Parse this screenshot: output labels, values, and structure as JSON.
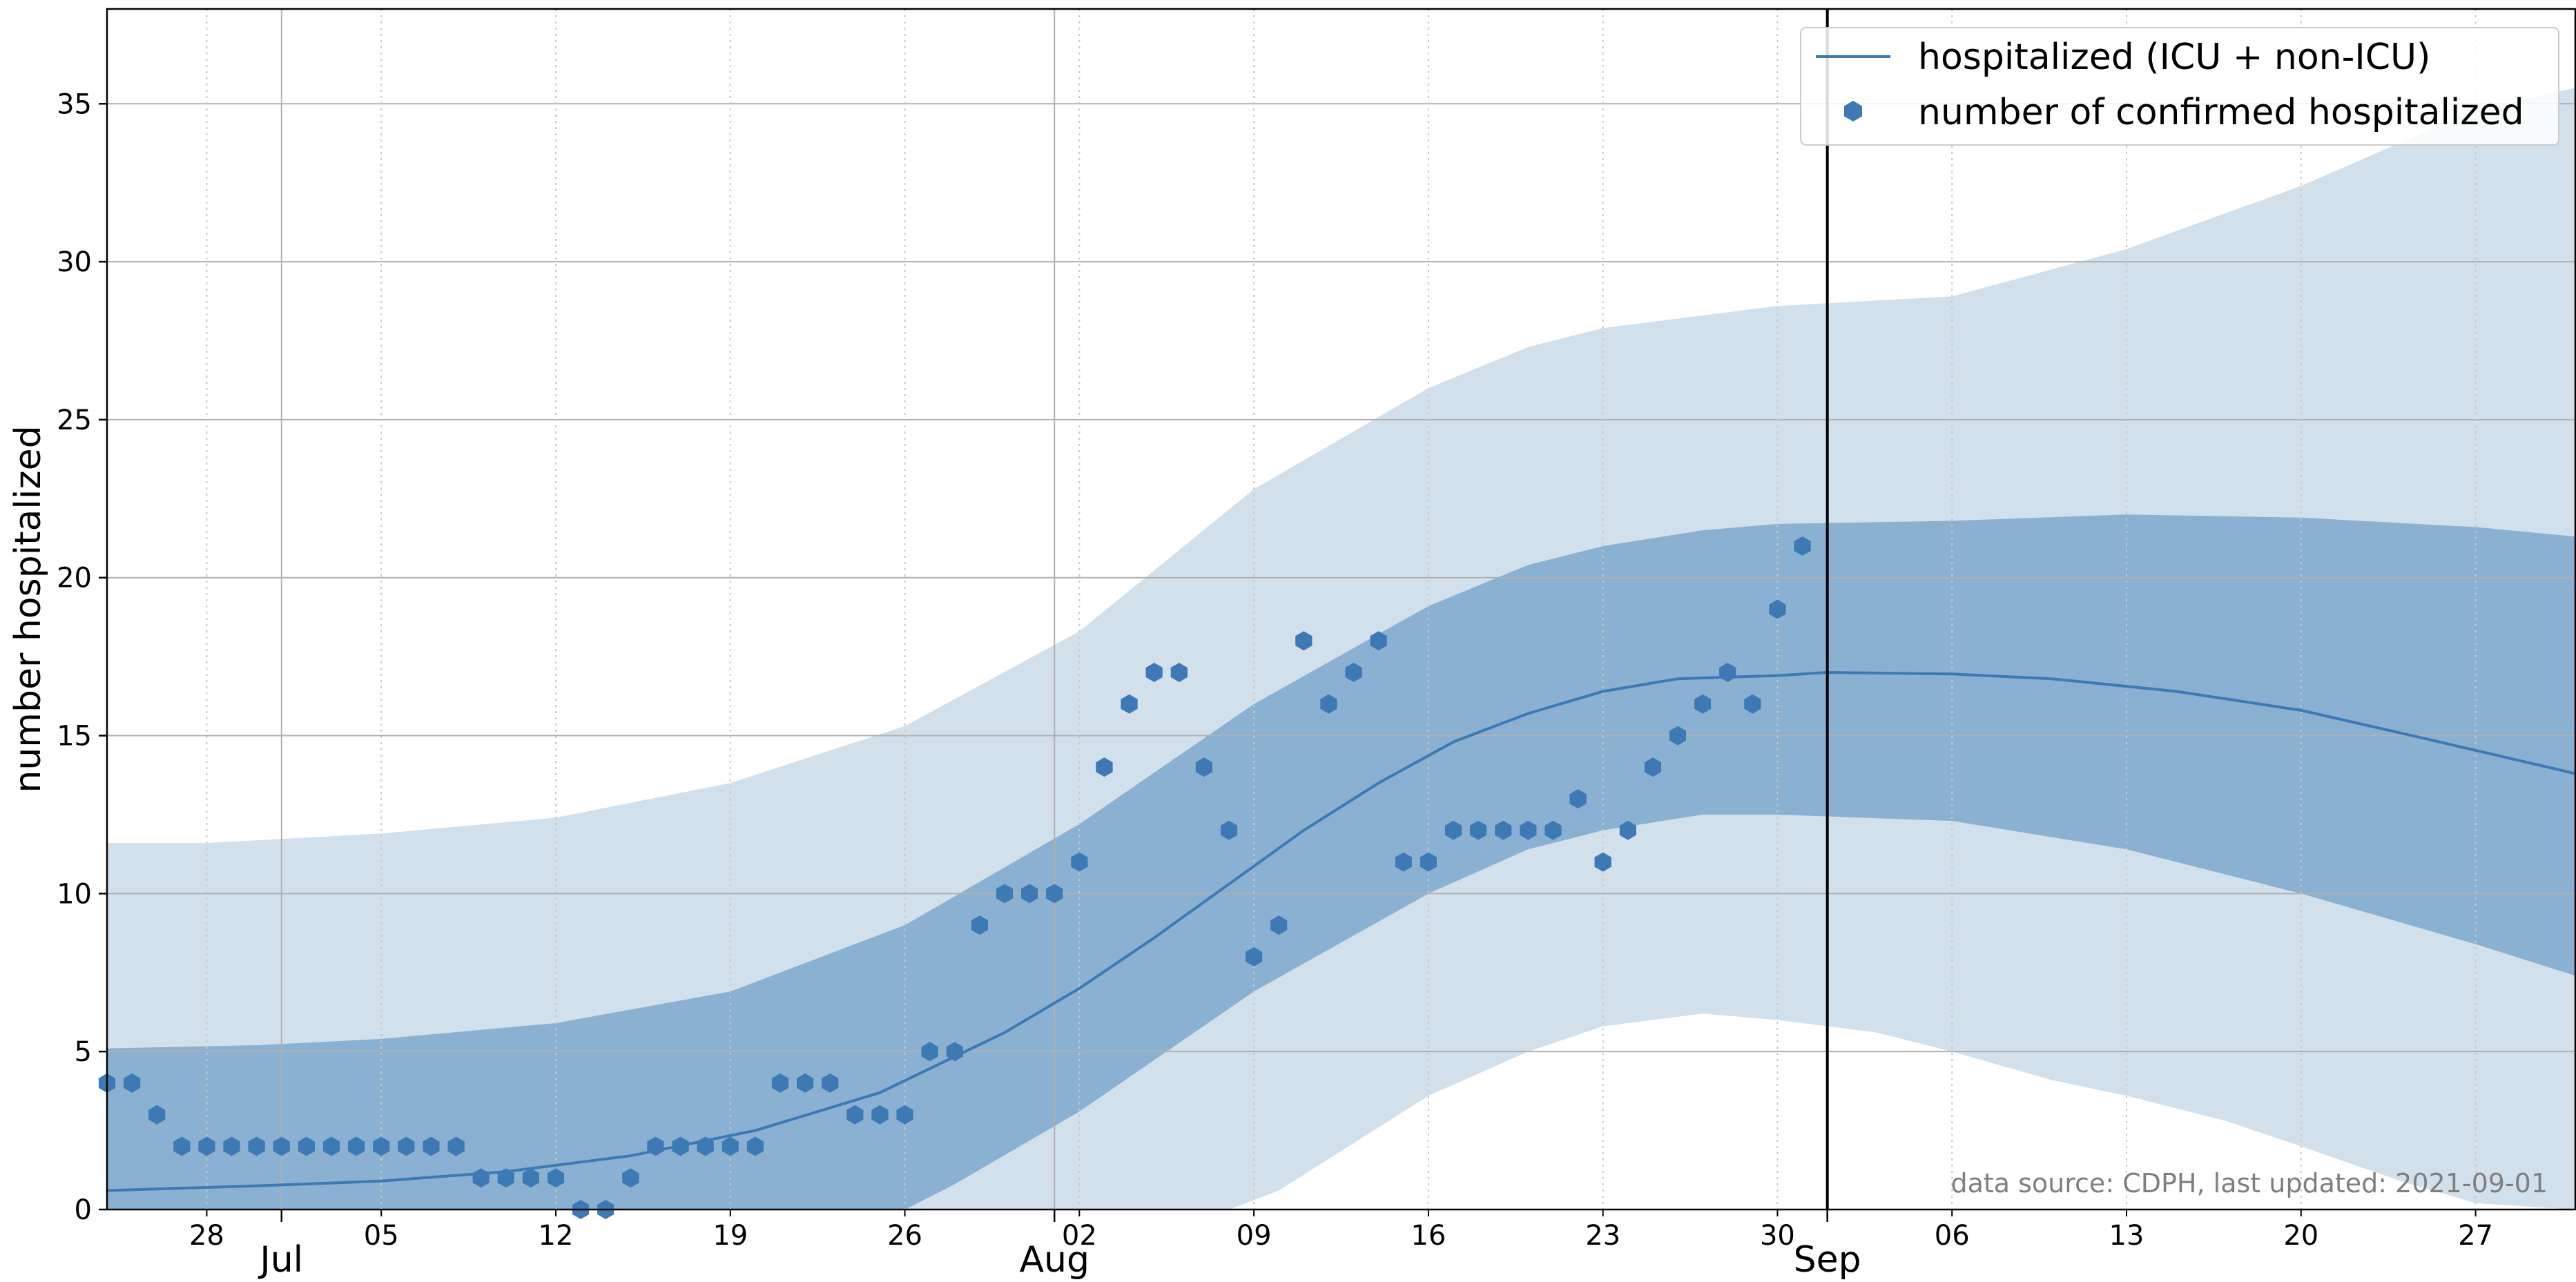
{
  "chart_data": {
    "type": "line",
    "title": "",
    "ylabel": "number hospitalized",
    "xlabel": "",
    "ylim": [
      0,
      38
    ],
    "xlim": [
      "2021-06-24",
      "2021-10-01"
    ],
    "grid": true,
    "legend_position": "top-right",
    "vertical_marker_date": "2021-09-01",
    "y_ticks": [
      0,
      5,
      10,
      15,
      20,
      25,
      30,
      35
    ],
    "x_minor_ticks": [
      {
        "date": "2021-06-28",
        "label": "28"
      },
      {
        "date": "2021-07-05",
        "label": "05"
      },
      {
        "date": "2021-07-12",
        "label": "12"
      },
      {
        "date": "2021-07-19",
        "label": "19"
      },
      {
        "date": "2021-07-26",
        "label": "26"
      },
      {
        "date": "2021-08-02",
        "label": "02"
      },
      {
        "date": "2021-08-09",
        "label": "09"
      },
      {
        "date": "2021-08-16",
        "label": "16"
      },
      {
        "date": "2021-08-23",
        "label": "23"
      },
      {
        "date": "2021-08-30",
        "label": "30"
      },
      {
        "date": "2021-09-06",
        "label": "06"
      },
      {
        "date": "2021-09-13",
        "label": "13"
      },
      {
        "date": "2021-09-20",
        "label": "20"
      },
      {
        "date": "2021-09-27",
        "label": "27"
      }
    ],
    "x_major_ticks": [
      {
        "date": "2021-07-01",
        "label": "Jul"
      },
      {
        "date": "2021-08-01",
        "label": "Aug"
      },
      {
        "date": "2021-09-01",
        "label": "Sep"
      }
    ],
    "legend": [
      {
        "label": "hospitalized (ICU + non-ICU)",
        "kind": "line"
      },
      {
        "label": "number of confirmed hospitalized",
        "kind": "marker"
      }
    ],
    "series": [
      {
        "name": "hospitalized (ICU + non-ICU)",
        "kind": "line",
        "color": "#3d7ab5",
        "points": [
          [
            "2021-06-24",
            0.6
          ],
          [
            "2021-06-30",
            0.75
          ],
          [
            "2021-07-05",
            0.9
          ],
          [
            "2021-07-10",
            1.2
          ],
          [
            "2021-07-15",
            1.7
          ],
          [
            "2021-07-20",
            2.5
          ],
          [
            "2021-07-25",
            3.7
          ],
          [
            "2021-07-30",
            5.6
          ],
          [
            "2021-08-02",
            7.0
          ],
          [
            "2021-08-05",
            8.6
          ],
          [
            "2021-08-08",
            10.3
          ],
          [
            "2021-08-11",
            12.0
          ],
          [
            "2021-08-14",
            13.5
          ],
          [
            "2021-08-17",
            14.8
          ],
          [
            "2021-08-20",
            15.7
          ],
          [
            "2021-08-23",
            16.4
          ],
          [
            "2021-08-26",
            16.8
          ],
          [
            "2021-08-30",
            16.9
          ],
          [
            "2021-09-01",
            17.0
          ],
          [
            "2021-09-06",
            16.95
          ],
          [
            "2021-09-10",
            16.8
          ],
          [
            "2021-09-15",
            16.4
          ],
          [
            "2021-09-20",
            15.8
          ],
          [
            "2021-09-25",
            14.9
          ],
          [
            "2021-10-01",
            13.8
          ]
        ]
      },
      {
        "name": "number of confirmed hospitalized",
        "kind": "scatter",
        "color": "#3d7ab5",
        "points": [
          [
            "2021-06-24",
            4
          ],
          [
            "2021-06-25",
            4
          ],
          [
            "2021-06-26",
            3
          ],
          [
            "2021-06-27",
            2
          ],
          [
            "2021-06-28",
            2
          ],
          [
            "2021-06-29",
            2
          ],
          [
            "2021-06-30",
            2
          ],
          [
            "2021-07-01",
            2
          ],
          [
            "2021-07-02",
            2
          ],
          [
            "2021-07-03",
            2
          ],
          [
            "2021-07-04",
            2
          ],
          [
            "2021-07-05",
            2
          ],
          [
            "2021-07-06",
            2
          ],
          [
            "2021-07-07",
            2
          ],
          [
            "2021-07-08",
            2
          ],
          [
            "2021-07-09",
            1
          ],
          [
            "2021-07-10",
            1
          ],
          [
            "2021-07-11",
            1
          ],
          [
            "2021-07-12",
            1
          ],
          [
            "2021-07-13",
            0
          ],
          [
            "2021-07-14",
            0
          ],
          [
            "2021-07-15",
            1
          ],
          [
            "2021-07-16",
            2
          ],
          [
            "2021-07-17",
            2
          ],
          [
            "2021-07-18",
            2
          ],
          [
            "2021-07-19",
            2
          ],
          [
            "2021-07-20",
            2
          ],
          [
            "2021-07-21",
            4
          ],
          [
            "2021-07-22",
            4
          ],
          [
            "2021-07-23",
            4
          ],
          [
            "2021-07-24",
            3
          ],
          [
            "2021-07-25",
            3
          ],
          [
            "2021-07-26",
            3
          ],
          [
            "2021-07-27",
            5
          ],
          [
            "2021-07-28",
            5
          ],
          [
            "2021-07-29",
            9
          ],
          [
            "2021-07-30",
            10
          ],
          [
            "2021-07-31",
            10
          ],
          [
            "2021-08-01",
            10
          ],
          [
            "2021-08-02",
            11
          ],
          [
            "2021-08-03",
            14
          ],
          [
            "2021-08-04",
            16
          ],
          [
            "2021-08-05",
            17
          ],
          [
            "2021-08-06",
            17
          ],
          [
            "2021-08-07",
            14
          ],
          [
            "2021-08-08",
            12
          ],
          [
            "2021-08-09",
            8
          ],
          [
            "2021-08-10",
            9
          ],
          [
            "2021-08-11",
            18
          ],
          [
            "2021-08-12",
            16
          ],
          [
            "2021-08-13",
            17
          ],
          [
            "2021-08-14",
            18
          ],
          [
            "2021-08-15",
            11
          ],
          [
            "2021-08-16",
            11
          ],
          [
            "2021-08-17",
            12
          ],
          [
            "2021-08-18",
            12
          ],
          [
            "2021-08-19",
            12
          ],
          [
            "2021-08-20",
            12
          ],
          [
            "2021-08-21",
            12
          ],
          [
            "2021-08-22",
            13
          ],
          [
            "2021-08-23",
            11
          ],
          [
            "2021-08-24",
            12
          ],
          [
            "2021-08-25",
            14
          ],
          [
            "2021-08-26",
            15
          ],
          [
            "2021-08-27",
            16
          ],
          [
            "2021-08-28",
            17
          ],
          [
            "2021-08-29",
            16
          ],
          [
            "2021-08-30",
            19
          ],
          [
            "2021-08-31",
            21
          ]
        ]
      }
    ],
    "bands": [
      {
        "role": "outer",
        "color": "#d2e0ec",
        "upper": [
          [
            "2021-06-24",
            11.6
          ],
          [
            "2021-06-28",
            11.6
          ],
          [
            "2021-07-05",
            11.9
          ],
          [
            "2021-07-12",
            12.4
          ],
          [
            "2021-07-19",
            13.5
          ],
          [
            "2021-07-26",
            15.3
          ],
          [
            "2021-08-02",
            18.3
          ],
          [
            "2021-08-09",
            22.8
          ],
          [
            "2021-08-16",
            26.0
          ],
          [
            "2021-08-20",
            27.3
          ],
          [
            "2021-08-23",
            27.9
          ],
          [
            "2021-08-27",
            28.3
          ],
          [
            "2021-08-30",
            28.6
          ],
          [
            "2021-09-06",
            28.9
          ],
          [
            "2021-09-13",
            30.4
          ],
          [
            "2021-09-20",
            32.4
          ],
          [
            "2021-09-27",
            34.8
          ],
          [
            "2021-10-01",
            35.5
          ]
        ],
        "lower": [
          [
            "2021-06-24",
            0
          ],
          [
            "2021-08-08",
            0
          ],
          [
            "2021-08-10",
            0.6
          ],
          [
            "2021-08-16",
            3.6
          ],
          [
            "2021-08-20",
            5.0
          ],
          [
            "2021-08-23",
            5.8
          ],
          [
            "2021-08-27",
            6.2
          ],
          [
            "2021-08-30",
            6.0
          ],
          [
            "2021-09-03",
            5.6
          ],
          [
            "2021-09-06",
            5.0
          ],
          [
            "2021-09-10",
            4.1
          ],
          [
            "2021-09-13",
            3.6
          ],
          [
            "2021-09-17",
            2.8
          ],
          [
            "2021-09-20",
            2.0
          ],
          [
            "2021-09-24",
            0.9
          ],
          [
            "2021-09-27",
            0.2
          ],
          [
            "2021-10-01",
            0
          ]
        ]
      },
      {
        "role": "inner",
        "color": "#8ab1d1",
        "upper": [
          [
            "2021-06-24",
            5.1
          ],
          [
            "2021-06-30",
            5.2
          ],
          [
            "2021-07-05",
            5.4
          ],
          [
            "2021-07-12",
            5.9
          ],
          [
            "2021-07-19",
            6.9
          ],
          [
            "2021-07-26",
            9.0
          ],
          [
            "2021-08-02",
            12.2
          ],
          [
            "2021-08-09",
            16.0
          ],
          [
            "2021-08-16",
            19.1
          ],
          [
            "2021-08-20",
            20.4
          ],
          [
            "2021-08-23",
            21.0
          ],
          [
            "2021-08-27",
            21.5
          ],
          [
            "2021-08-30",
            21.7
          ],
          [
            "2021-09-06",
            21.8
          ],
          [
            "2021-09-13",
            22.0
          ],
          [
            "2021-09-20",
            21.9
          ],
          [
            "2021-09-27",
            21.6
          ],
          [
            "2021-10-01",
            21.3
          ]
        ],
        "lower": [
          [
            "2021-06-24",
            0
          ],
          [
            "2021-07-26",
            0
          ],
          [
            "2021-07-28",
            0.8
          ],
          [
            "2021-08-02",
            3.1
          ],
          [
            "2021-08-09",
            6.9
          ],
          [
            "2021-08-16",
            10.0
          ],
          [
            "2021-08-20",
            11.4
          ],
          [
            "2021-08-23",
            12.0
          ],
          [
            "2021-08-27",
            12.5
          ],
          [
            "2021-08-30",
            12.5
          ],
          [
            "2021-09-06",
            12.3
          ],
          [
            "2021-09-13",
            11.4
          ],
          [
            "2021-09-20",
            10.0
          ],
          [
            "2021-09-27",
            8.4
          ],
          [
            "2021-10-01",
            7.4
          ]
        ]
      }
    ],
    "annotation": "data source: CDPH, last updated: 2021-09-01"
  }
}
